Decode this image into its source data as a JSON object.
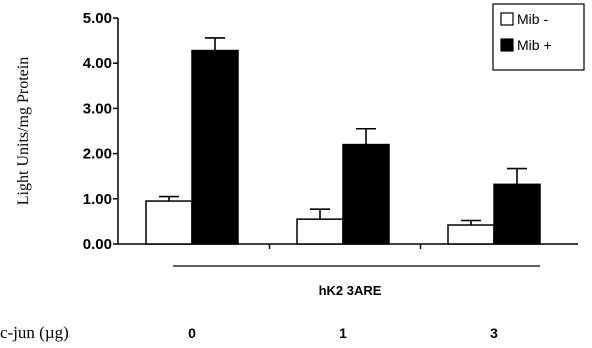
{
  "chart_data": {
    "type": "bar",
    "ylabel": "Light Units/mg Protein",
    "ylim": [
      0,
      5
    ],
    "yticks": [
      "0.00",
      "1.00",
      "2.00",
      "3.00",
      "4.00",
      "5.00"
    ],
    "categories": [
      "0",
      "1",
      "3"
    ],
    "group_label": "hK2 3ARE",
    "row_label": "c-jun (µg)",
    "grid": false,
    "legend_position": "top-right",
    "error_bars": true,
    "series": [
      {
        "name": "Mib -",
        "fill": "#ffffff",
        "values": [
          0.95,
          0.55,
          0.42
        ],
        "errors": [
          0.1,
          0.22,
          0.1
        ]
      },
      {
        "name": "Mib +",
        "fill": "#000000",
        "values": [
          4.28,
          2.2,
          1.32
        ],
        "errors": [
          0.28,
          0.35,
          0.35
        ]
      }
    ]
  }
}
